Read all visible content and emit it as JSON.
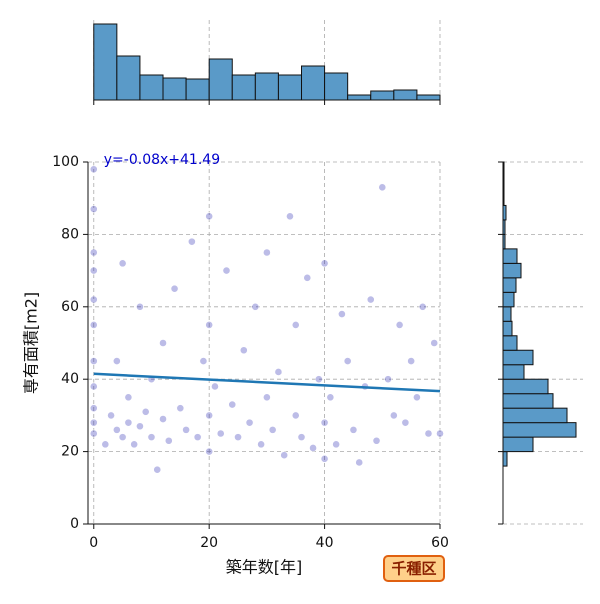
{
  "chart_data": [
    {
      "type": "scatter",
      "xlabel": "築年数[年]",
      "ylabel": "専有面積[m2]",
      "color": "#2222b0",
      "x": [
        0,
        0,
        0,
        0,
        0,
        0,
        0,
        0,
        0,
        0,
        0,
        2,
        3,
        4,
        4,
        5,
        5,
        6,
        6,
        7,
        8,
        8,
        9,
        10,
        10,
        11,
        12,
        12,
        13,
        14,
        15,
        16,
        17,
        18,
        19,
        20,
        20,
        20,
        20,
        21,
        22,
        23,
        24,
        25,
        26,
        27,
        28,
        29,
        30,
        30,
        31,
        32,
        33,
        34,
        35,
        35,
        36,
        37,
        38,
        39,
        40,
        40,
        40,
        41,
        42,
        43,
        44,
        45,
        46,
        47,
        48,
        49,
        50,
        51,
        52,
        53,
        54,
        55,
        56,
        57,
        58,
        59,
        60
      ],
      "y": [
        25,
        28,
        32,
        38,
        45,
        55,
        62,
        70,
        75,
        87,
        98,
        22,
        30,
        26,
        45,
        24,
        72,
        28,
        35,
        22,
        27,
        60,
        31,
        24,
        40,
        15,
        29,
        50,
        23,
        65,
        32,
        26,
        78,
        24,
        45,
        20,
        30,
        55,
        85,
        38,
        25,
        70,
        33,
        24,
        48,
        28,
        60,
        22,
        35,
        75,
        26,
        42,
        19,
        85,
        30,
        55,
        24,
        68,
        21,
        40,
        18,
        28,
        72,
        35,
        22,
        58,
        45,
        26,
        17,
        38,
        62,
        23,
        93,
        40,
        30,
        55,
        28,
        45,
        35,
        60,
        25,
        50,
        25
      ],
      "xlim": [
        -1,
        60
      ],
      "ylim": [
        0,
        100
      ],
      "xticks": [
        0,
        20,
        40,
        60
      ],
      "yticks": [
        0,
        20,
        40,
        60,
        80,
        100
      ],
      "grid": true,
      "regression": {
        "slope": -0.08,
        "intercept": 41.49,
        "label": "y=-0.08x+41.49",
        "color": "#1f77b4"
      },
      "tag": "千種区"
    },
    {
      "type": "histogram",
      "bins": [
        0,
        4,
        8,
        12,
        16,
        20,
        24,
        28,
        32,
        36,
        40,
        44,
        48,
        52,
        56,
        60
      ],
      "counts": [
        76,
        44,
        25,
        22,
        21,
        41,
        25,
        27,
        25,
        34,
        27,
        5,
        9,
        10,
        5
      ],
      "ylim": [
        0,
        80
      ],
      "color": "#5a9ac8"
    },
    {
      "type": "histogram",
      "orientation": "horizontal",
      "bins": [
        16,
        20,
        24,
        28,
        32,
        36,
        40,
        44,
        48,
        52,
        56,
        60,
        64,
        68,
        72,
        76,
        80,
        84,
        88,
        92,
        96,
        100
      ],
      "counts": [
        4,
        30,
        73,
        64,
        50,
        45,
        21,
        30,
        14,
        9,
        8,
        11,
        13,
        18,
        14,
        2,
        2,
        3,
        1,
        1,
        1
      ],
      "xlim": [
        0,
        80
      ],
      "color": "#5a9ac8"
    }
  ]
}
